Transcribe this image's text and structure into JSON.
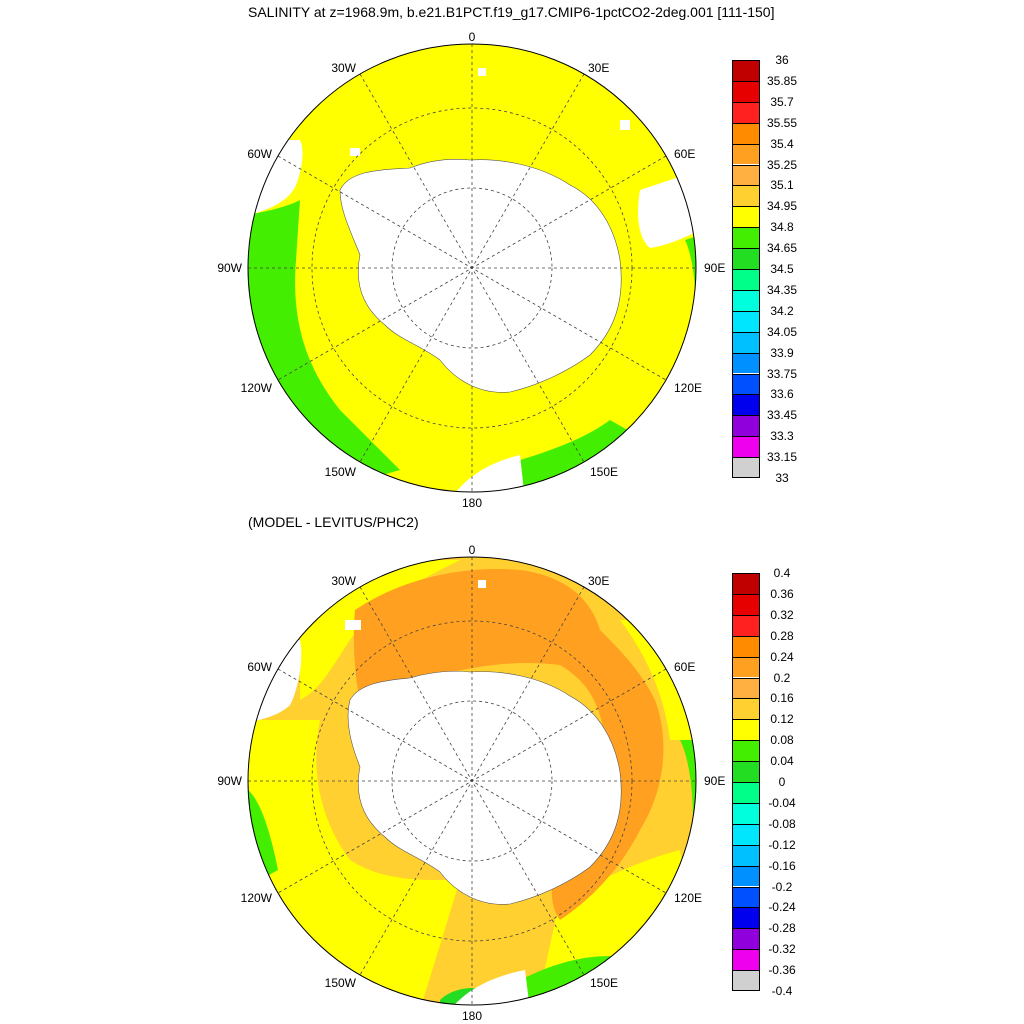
{
  "titles": {
    "main": "SALINITY at z=1968.9m, b.e21.B1PCT.f19_g17.CMIP6-1pctCO2-2deg.001 [111-150]",
    "sub": "(MODEL - LEVITUS/PHC2)"
  },
  "grid_labels": {
    "top": "0",
    "bottom": "180",
    "left": "90W",
    "right": "90E",
    "upper_left": "30W",
    "upper_right": "30E",
    "mid_left": "60W",
    "mid_right": "60E",
    "lower_left_a": "120W",
    "lower_right_a": "120E",
    "lower_left_b": "150W",
    "lower_right_b": "150E"
  },
  "colorbar_top": {
    "labels": [
      "36",
      "35.85",
      "35.7",
      "35.55",
      "35.4",
      "35.25",
      "35.1",
      "34.95",
      "34.8",
      "34.65",
      "34.5",
      "34.35",
      "34.2",
      "34.05",
      "33.9",
      "33.75",
      "33.6",
      "33.45",
      "33.3",
      "33.15",
      "33"
    ],
    "colors": [
      "#c00000",
      "#e60000",
      "#ff2020",
      "#ff8c00",
      "#ffa020",
      "#ffb040",
      "#ffd030",
      "#ffff00",
      "#44ee00",
      "#22dd22",
      "#00ff88",
      "#00ffdd",
      "#00e6ff",
      "#00c0ff",
      "#0090ff",
      "#0050ff",
      "#0000ee",
      "#9000dd",
      "#ee00ee",
      "#d0d0d0",
      "#707070"
    ]
  },
  "colorbar_bottom": {
    "labels": [
      "0.4",
      "0.36",
      "0.32",
      "0.28",
      "0.24",
      "0.2",
      "0.16",
      "0.12",
      "0.08",
      "0.04",
      "0",
      "-0.04",
      "-0.08",
      "-0.12",
      "-0.16",
      "-0.2",
      "-0.24",
      "-0.28",
      "-0.32",
      "-0.36",
      "-0.4"
    ],
    "colors": [
      "#c00000",
      "#e60000",
      "#ff2020",
      "#ff8c00",
      "#ffa020",
      "#ffb040",
      "#ffd030",
      "#ffff00",
      "#44ee00",
      "#22dd22",
      "#00ff88",
      "#00ffdd",
      "#00e6ff",
      "#00c0ff",
      "#0090ff",
      "#0050ff",
      "#0000ee",
      "#9000dd",
      "#ee00ee",
      "#d0d0d0",
      "#707070"
    ]
  },
  "chart_data": [
    {
      "type": "heatmap",
      "title": "SALINITY at z=1968.9m, b.e21.B1PCT.f19_g17.CMIP6-1pctCO2-2deg.001 [111-150]",
      "projection": "south polar stereographic",
      "levels": [
        33,
        33.15,
        33.3,
        33.45,
        33.6,
        33.75,
        33.9,
        34.05,
        34.2,
        34.35,
        34.5,
        34.65,
        34.8,
        34.95,
        35.1,
        35.25,
        35.4,
        35.55,
        35.7,
        35.85,
        36
      ],
      "dominant_range": [
        34.8,
        34.95
      ],
      "secondary_range": [
        34.65,
        34.8
      ],
      "secondary_regions": [
        "90W-120W outer sector",
        "150E-180 margin",
        "90E margin"
      ]
    },
    {
      "type": "heatmap",
      "title": "(MODEL - LEVITUS/PHC2)",
      "projection": "south polar stereographic",
      "levels": [
        -0.4,
        -0.36,
        -0.32,
        -0.28,
        -0.24,
        -0.2,
        -0.16,
        -0.12,
        -0.08,
        -0.04,
        0,
        0.04,
        0.08,
        0.12,
        0.16,
        0.2,
        0.24,
        0.28,
        0.32,
        0.36,
        0.4
      ],
      "dominant_range": [
        0.16,
        0.2
      ],
      "secondary_range": [
        0.2,
        0.24
      ],
      "minor_ranges": [
        [
          0.08,
          0.12
        ],
        [
          0.04,
          0.08
        ],
        [
          0.24,
          0.28
        ]
      ]
    }
  ]
}
